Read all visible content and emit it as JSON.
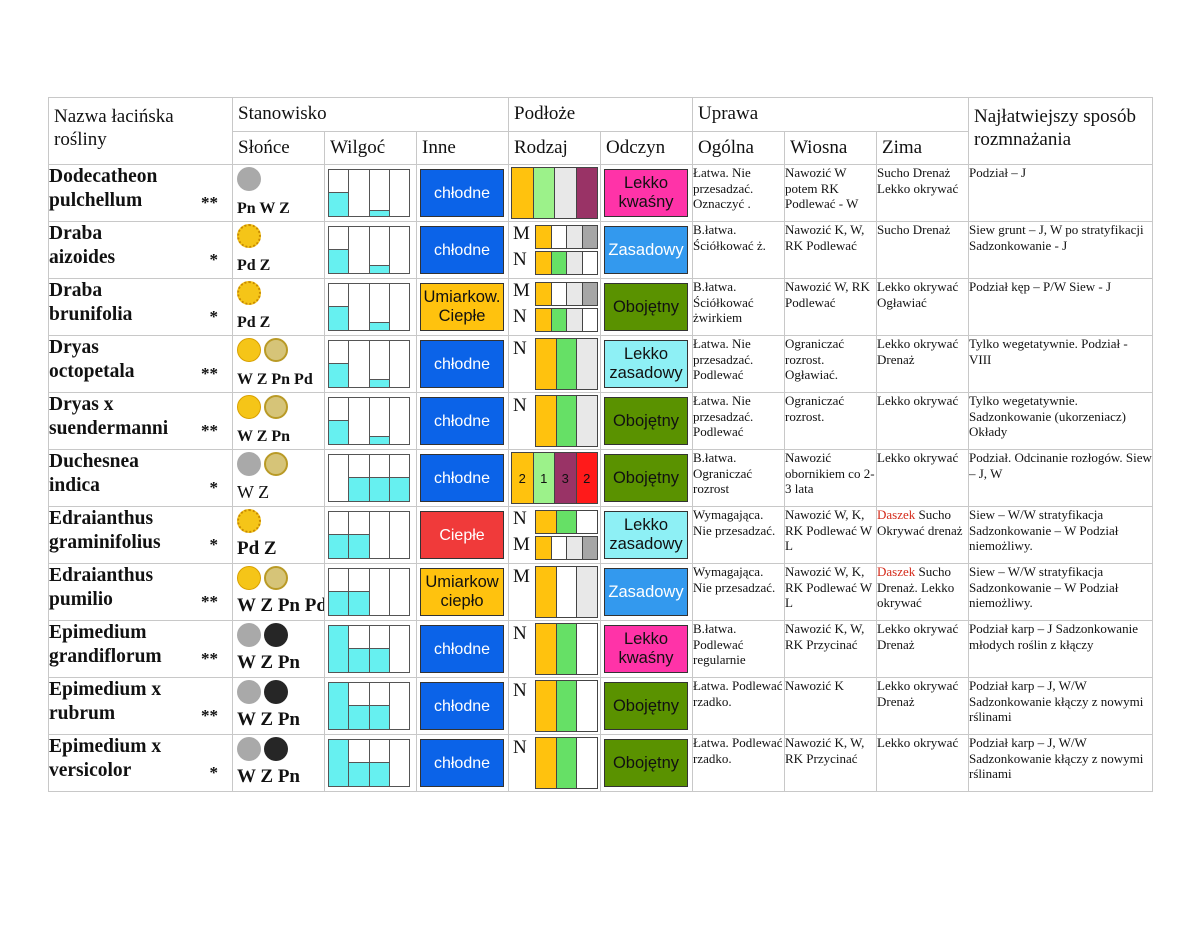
{
  "headers": {
    "name": "Nazwa łacińska rośliny",
    "stanowisko": "Stanowisko",
    "podloze": "Podłoże",
    "uprawa": "Uprawa",
    "rozmn": "Najłatwiejszy sposób rozmnażania",
    "slonce": "Słońce",
    "wilgoc": "Wilgoć",
    "inne": "Inne",
    "rodzaj": "Rodzaj",
    "odczyn": "Odczyn",
    "ogolna": "Ogólna",
    "wiosna": "Wiosna",
    "zima": "Zima"
  },
  "colors": {
    "blue": "#0b63e8",
    "red": "#f03a3a",
    "orange": "#ffc20e",
    "pink": "#ff33a8",
    "lightblue": "#8ef0f5",
    "midblue": "#3399ee",
    "green": "#5a9200",
    "water": "#66f0f0"
  },
  "rows": [
    {
      "name1": "Dodecatheon",
      "name2": "pulchellum",
      "stars": "**",
      "suns": [
        "gray"
      ],
      "sun_text": "Pn W Z",
      "wilgoc": [
        0.5,
        0,
        0.1,
        0
      ],
      "inne": "chłodne",
      "inne_color": "blue",
      "rodzaj": {
        "type": "bars",
        "bars": [
          {
            "c": "#ffc20e",
            "t": ""
          },
          {
            "c": "#9cf28a",
            "t": ""
          },
          {
            "c": "#e8e8e8",
            "t": ""
          },
          {
            "c": "#993366",
            "t": ""
          }
        ]
      },
      "odczyn": "Lekko kwaśny",
      "odczyn_color": "pink",
      "ogolna": "Łatwa. Nie przesadzać. Oznaczyć .",
      "wiosna": "Nawozić W potem RK Podlewać - W",
      "zima": "Sucho Drenaż Lekko okrywać",
      "zima_red": "",
      "rozmn": "Podział – J"
    },
    {
      "name1": "Draba",
      "name2": "aizoides",
      "stars": "*",
      "suns": [
        "sun"
      ],
      "sun_text": "Pd  Z",
      "wilgoc": [
        0.5,
        0,
        0.15,
        0
      ],
      "inne": "chłodne",
      "inne_color": "blue",
      "rodzaj": {
        "type": "split",
        "top": {
          "l": "M",
          "bars": [
            "#ffc20e",
            "#ffffff",
            "#e8e8e8",
            "#a6a6a6"
          ]
        },
        "bot": {
          "l": "N",
          "bars": [
            "#ffc20e",
            "#66e066",
            "#e8e8e8",
            "#ffffff"
          ]
        }
      },
      "odczyn": "Zasadowy",
      "odczyn_color": "midblue",
      "ogolna": "B.łatwa. Ściółkować ż.",
      "wiosna": "Nawozić K, W, RK Podlewać",
      "zima": "Sucho Drenaż",
      "zima_red": "",
      "rozmn": "Siew grunt – J, W po stratyfikacji Sadzonkowanie - J"
    },
    {
      "name1": "Draba",
      "name2": "brunifolia",
      "stars": "*",
      "suns": [
        "sun"
      ],
      "sun_text": "Pd  Z",
      "wilgoc": [
        0.5,
        0,
        0.15,
        0
      ],
      "inne": "Umiarkow. Ciepłe",
      "inne_color": "orange",
      "rodzaj": {
        "type": "split",
        "top": {
          "l": "M",
          "bars": [
            "#ffc20e",
            "#ffffff",
            "#e8e8e8",
            "#a6a6a6"
          ]
        },
        "bot": {
          "l": "N",
          "bars": [
            "#ffc20e",
            "#66e066",
            "#e8e8e8",
            "#ffffff"
          ]
        }
      },
      "odczyn": "Obojętny",
      "odczyn_color": "green",
      "ogolna": "B.łatwa. Ściółkować żwirkiem",
      "wiosna": "Nawozić W, RK Podlewać",
      "zima": "Lekko okrywać Ogławiać",
      "zima_red": "",
      "rozmn": "Podział kęp – P/W Siew - J"
    },
    {
      "name1": "Dryas",
      "name2": "octopetala",
      "stars": "**",
      "suns": [
        "yel",
        "half"
      ],
      "sun_text": "W Z Pn Pd",
      "wilgoc": [
        0.5,
        0,
        0.15,
        0
      ],
      "inne": "chłodne",
      "inne_color": "blue",
      "rodzaj": {
        "type": "letter",
        "l": "N",
        "bars": [
          "#ffc20e",
          "#66e066",
          "#e8e8e8"
        ]
      },
      "odczyn": "Lekko zasadowy",
      "odczyn_color": "lightblue",
      "ogolna": "Łatwa. Nie przesadzać. Podlewać",
      "wiosna": "Ograniczać rozrost. Ogławiać.",
      "zima": "Lekko okrywać Drenaż",
      "zima_red": "",
      "rozmn": "Tylko wegetatywnie. Podział - VIII"
    },
    {
      "name1": "Dryas x",
      "name2": "suendermanni",
      "stars": "**",
      "suns": [
        "yel",
        "half"
      ],
      "sun_text": "W Z Pn",
      "wilgoc": [
        0.5,
        0,
        0.15,
        0
      ],
      "inne": "chłodne",
      "inne_color": "blue",
      "rodzaj": {
        "type": "letter",
        "l": "N",
        "bars": [
          "#ffc20e",
          "#66e066",
          "#e8e8e8"
        ]
      },
      "odczyn": "Obojętny",
      "odczyn_color": "green",
      "ogolna": "Łatwa. Nie przesadzać. Podlewać",
      "wiosna": "Ograniczać rozrost.",
      "zima": "Lekko okrywać",
      "zima_red": "",
      "rozmn": "Tylko wegetatywnie. Sadzonkowanie (ukorzeniacz) Okłady"
    },
    {
      "name1": "Duchesnea",
      "name2": "indica",
      "stars": "*",
      "suns": [
        "gray",
        "half"
      ],
      "sun_text": "W Z",
      "wilgoc": [
        0,
        0.5,
        0.5,
        0.5
      ],
      "inne": "chłodne",
      "inne_color": "blue",
      "rodzaj": {
        "type": "bars",
        "bars": [
          {
            "c": "#ffc20e",
            "t": "2"
          },
          {
            "c": "#9cf28a",
            "t": "1"
          },
          {
            "c": "#993366",
            "t": "3"
          },
          {
            "c": "#ff1a1a",
            "t": "2"
          }
        ]
      },
      "odczyn": "Obojętny",
      "odczyn_color": "green",
      "ogolna": "B.łatwa. Ograniczać rozrost",
      "wiosna": "Nawozić obornikiem co 2-3  lata",
      "zima": "Lekko okrywać",
      "zima_red": "",
      "rozmn": "Podział. Odcinanie rozłogów. Siew – J, W"
    },
    {
      "name1": "Edraianthus",
      "name2": "graminifolius",
      "stars": "*",
      "suns": [
        "sun"
      ],
      "sun_text": "Pd Z",
      "wilgoc": [
        0.5,
        0.5,
        0,
        0
      ],
      "inne": "Ciepłe",
      "inne_color": "red",
      "rodzaj": {
        "type": "split",
        "top": {
          "l": "N",
          "bars": [
            "#ffc20e",
            "#66e066",
            "#ffffff"
          ]
        },
        "bot": {
          "l": "M",
          "bars": [
            "#ffc20e",
            "#ffffff",
            "#e8e8e8",
            "#a6a6a6"
          ]
        }
      },
      "odczyn": "Lekko zasadowy",
      "odczyn_color": "lightblue",
      "ogolna": "Wymagająca. Nie przesadzać.",
      "wiosna": "Nawozić W, K, RK Podlewać W L",
      "zima": "Sucho Okrywać drenaż",
      "zima_red": "Daszek",
      "rozmn": "Siew – W/W stratyfikacja Sadzonkowanie – W Podział niemożliwy."
    },
    {
      "name1": "Edraianthus",
      "name2": "pumilio",
      "stars": "**",
      "suns": [
        "yel",
        "half"
      ],
      "sun_text": "W Z Pn Pd",
      "wilgoc": [
        0.5,
        0.5,
        0,
        0
      ],
      "inne": "Umiarkow ciepło",
      "inne_color": "orange",
      "rodzaj": {
        "type": "letter",
        "l": "M",
        "bars": [
          "#ffc20e",
          "#ffffff",
          "#e8e8e8"
        ]
      },
      "odczyn": "Zasadowy",
      "odczyn_color": "midblue",
      "ogolna": "Wymagająca. Nie przesadzać.",
      "wiosna": "Nawozić W, K, RK Podlewać W L",
      "zima": "Sucho Drenaż. Lekko okrywać",
      "zima_red": "Daszek",
      "rozmn": "Siew – W/W stratyfikacja Sadzonkowanie – W Podział niemożliwy."
    },
    {
      "name1": "Epimedium",
      "name2": "grandiflorum",
      "stars": "**",
      "suns": [
        "gray",
        "black"
      ],
      "sun_text": "W  Z  Pn",
      "wilgoc": [
        1,
        0.5,
        0.5,
        0
      ],
      "inne": "chłodne",
      "inne_color": "blue",
      "rodzaj": {
        "type": "letter",
        "l": "N",
        "bars": [
          "#ffc20e",
          "#66e066",
          "#ffffff"
        ]
      },
      "odczyn": "Lekko kwaśny",
      "odczyn_color": "pink",
      "ogolna": "B.łatwa. Podlewać regularnie",
      "wiosna": "Nawozić K, W, RK Przycinać",
      "zima": "Lekko okrywać Drenaż",
      "zima_red": "",
      "rozmn": "Podział karp – J Sadzonkowanie młodych roślin z kłączy"
    },
    {
      "name1": "Epimedium x",
      "name2": "rubrum",
      "stars": "**",
      "suns": [
        "gray",
        "black"
      ],
      "sun_text": "W  Z  Pn",
      "wilgoc": [
        1,
        0.5,
        0.5,
        0
      ],
      "inne": "chłodne",
      "inne_color": "blue",
      "rodzaj": {
        "type": "letter",
        "l": "N",
        "bars": [
          "#ffc20e",
          "#66e066",
          "#ffffff"
        ]
      },
      "odczyn": "Obojętny",
      "odczyn_color": "green",
      "ogolna": "Łatwa. Podlewać rzadko.",
      "wiosna": "Nawozić K",
      "zima": "Lekko okrywać Drenaż",
      "zima_red": "",
      "rozmn": "Podział karp – J, W/W Sadzonkowanie kłączy  z nowymi rślinami"
    },
    {
      "name1": "Epimedium x",
      "name2": "versicolor",
      "stars": "*",
      "suns": [
        "gray",
        "black"
      ],
      "sun_text": "W  Z  Pn",
      "wilgoc": [
        1,
        0.5,
        0.5,
        0
      ],
      "inne": "chłodne",
      "inne_color": "blue",
      "rodzaj": {
        "type": "letter",
        "l": "N",
        "bars": [
          "#ffc20e",
          "#66e066",
          "#ffffff"
        ]
      },
      "odczyn": "Obojętny",
      "odczyn_color": "green",
      "ogolna": "Łatwa. Podlewać rzadko.",
      "wiosna": "Nawozić K, W, RK Przycinać",
      "zima": "Lekko okrywać",
      "zima_red": "",
      "rozmn": "Podział karp – J, W/W Sadzonkowanie kłączy z nowymi rślinami"
    }
  ]
}
